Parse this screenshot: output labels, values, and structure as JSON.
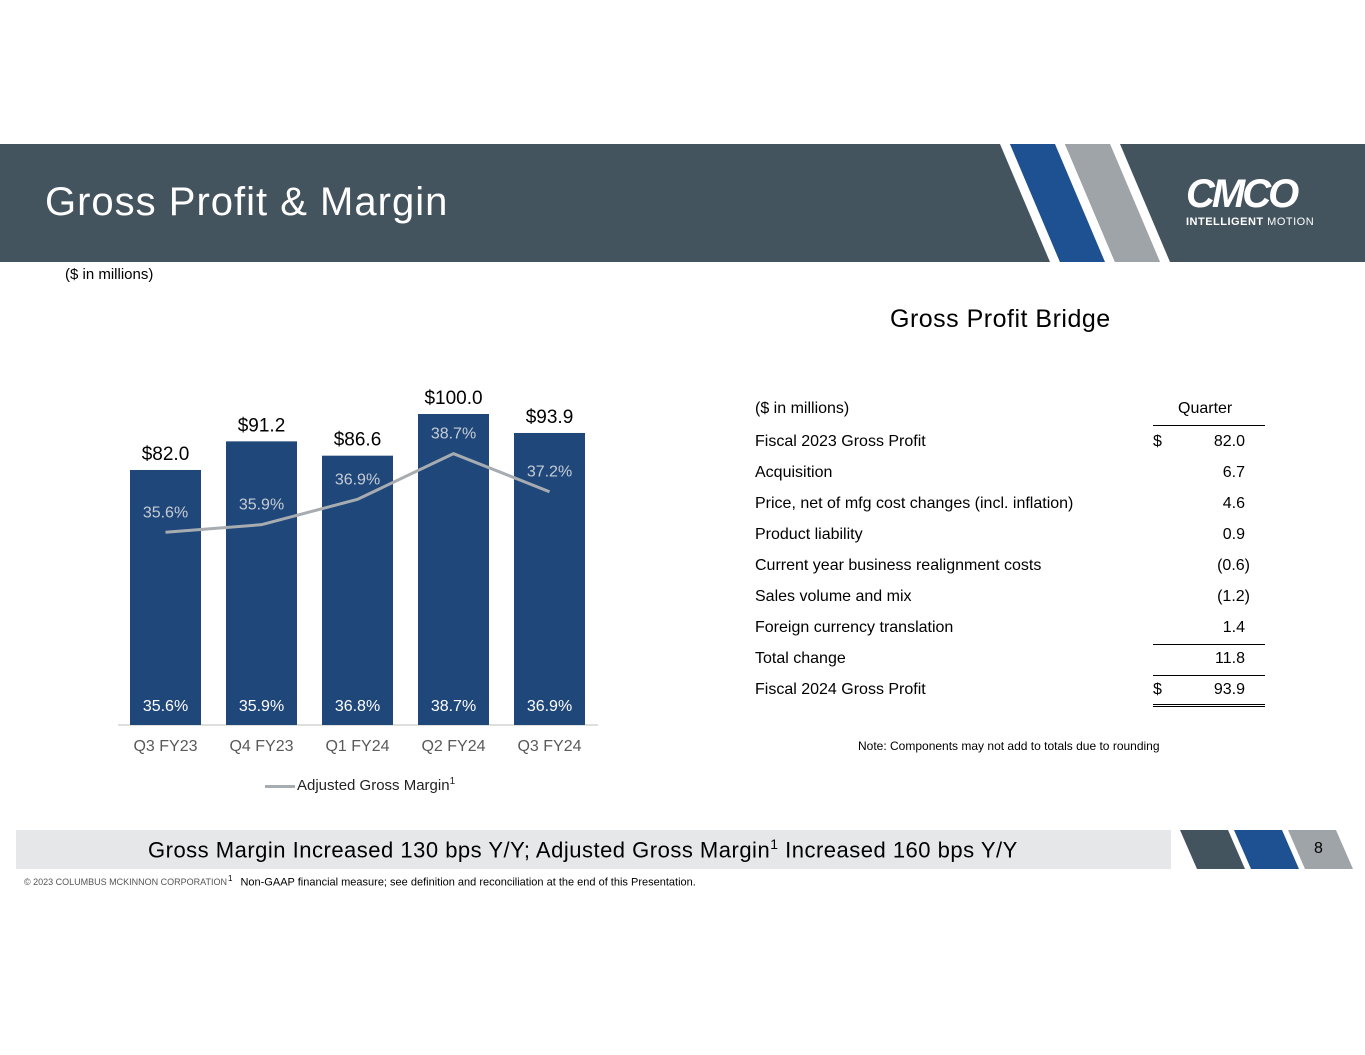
{
  "header": {
    "title": "Gross Profit & Margin"
  },
  "logo": {
    "wordmark": "CMCO",
    "tagline_bold": "INTELLIGENT",
    "tagline_light": "MOTION"
  },
  "units_label": "($ in millions)",
  "chart_data": {
    "type": "bar",
    "categories": [
      "Q3 FY23",
      "Q4 FY23",
      "Q1 FY24",
      "Q2 FY24",
      "Q3 FY24"
    ],
    "values": [
      82.0,
      91.2,
      86.6,
      100.0,
      93.9
    ],
    "value_labels": [
      "$82.0",
      "$91.2",
      "$86.6",
      "$100.0",
      "$93.9"
    ],
    "bar_inner_labels": [
      "35.6%",
      "35.9%",
      "36.8%",
      "38.7%",
      "36.9%"
    ],
    "line_series": {
      "name": "Adjusted Gross Margin",
      "name_superscript": "1",
      "values": [
        35.6,
        35.9,
        36.9,
        38.7,
        37.2
      ],
      "labels": [
        "35.6%",
        "35.9%",
        "36.9%",
        "38.7%",
        "37.2%"
      ],
      "ylim": [
        28,
        42
      ]
    },
    "ylim": [
      0,
      110
    ],
    "bar_color": "#1f477a",
    "line_color": "#a7acb1"
  },
  "bridge": {
    "title": "Gross Profit Bridge",
    "header_label": "($ in millions)",
    "header_col": "Quarter",
    "rows": [
      {
        "label": "Fiscal 2023 Gross Profit",
        "currency": "$",
        "value": "82.0"
      },
      {
        "label": "Acquisition",
        "currency": "",
        "value": "6.7"
      },
      {
        "label": "Price, net of mfg cost changes (incl. inflation)",
        "currency": "",
        "value": "4.6"
      },
      {
        "label": "Product liability",
        "currency": "",
        "value": "0.9"
      },
      {
        "label": "Current year business realignment costs",
        "currency": "",
        "value": "(0.6)"
      },
      {
        "label": "Sales volume and mix",
        "currency": "",
        "value": "(1.2)"
      },
      {
        "label": "Foreign currency translation",
        "currency": "",
        "value": "1.4"
      },
      {
        "label": "Total change",
        "currency": "",
        "value": "11.8"
      },
      {
        "label": "Fiscal 2024 Gross Profit",
        "currency": "$",
        "value": "93.9"
      }
    ],
    "note": "Note: Components may not add to totals due to rounding"
  },
  "banner": {
    "text_a": "Gross Margin Increased 130 bps Y/Y; Adjusted Gross Margin",
    "sup": "1",
    "text_b": " Increased 160 bps Y/Y",
    "page_number": "8"
  },
  "footer": {
    "copyright": "© 2023 COLUMBUS MCKINNON CORPORATION",
    "footnote_marker": "1",
    "footnote": "Non-GAAP financial measure; see definition and reconciliation at the end of this Presentation."
  },
  "colors": {
    "header_bg": "#44545e",
    "stripe_blue": "#1d5192",
    "stripe_gray": "#9ea4a8",
    "banner_bg": "#e6e7e9"
  }
}
